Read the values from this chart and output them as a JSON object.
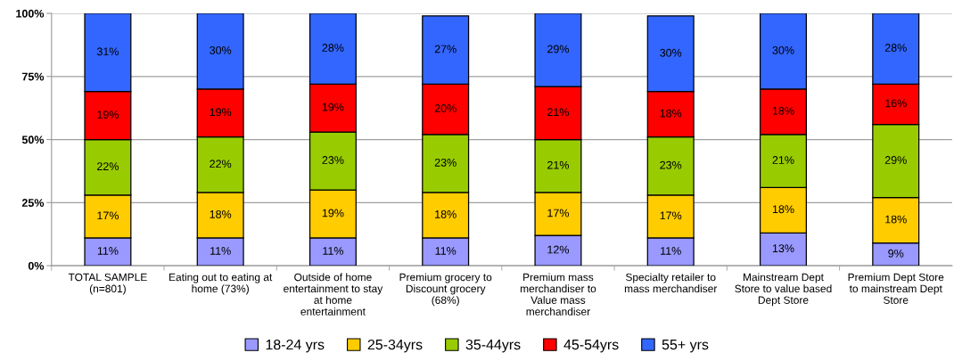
{
  "chart_data": {
    "type": "bar",
    "stacked": true,
    "categories": [
      "TOTAL SAMPLE (n=801)",
      "Eating out to eating at home (73%)",
      "Outside of home entertainment to stay at home entertainment",
      "Premium grocery to Discount grocery (68%)",
      "Premium mass merchandiser to Value mass merchandiser",
      "Specialty retailer to mass merchandiser",
      "Mainstream Dept Store to value based Dept Store",
      "Premium Dept Store to mainstream Dept Store"
    ],
    "series": [
      {
        "name": "18-24 yrs",
        "color": "#9999ff",
        "values": [
          11,
          11,
          11,
          11,
          12,
          11,
          13,
          9
        ],
        "value_labels": [
          "11%",
          "11%",
          "11%",
          "11%",
          "12%",
          "11%",
          "13%",
          "9%"
        ]
      },
      {
        "name": "25-34yrs",
        "color": "#ffcc00",
        "values": [
          17,
          18,
          19,
          18,
          17,
          17,
          18,
          18
        ],
        "value_labels": [
          "17%",
          "18%",
          "19%",
          "18%",
          "17%",
          "17%",
          "18%",
          "18%"
        ]
      },
      {
        "name": "35-44yrs",
        "color": "#99cc00",
        "values": [
          22,
          22,
          23,
          23,
          21,
          23,
          21,
          29
        ],
        "value_labels": [
          "22%",
          "22%",
          "23%",
          "23%",
          "21%",
          "23%",
          "21%",
          "29%"
        ]
      },
      {
        "name": "45-54yrs",
        "color": "#ff0000",
        "values": [
          19,
          19,
          19,
          20,
          21,
          18,
          18,
          16
        ],
        "value_labels": [
          "19%",
          "19%",
          "19%",
          "20%",
          "21%",
          "18%",
          "18%",
          "16%"
        ]
      },
      {
        "name": "55+ yrs",
        "color": "#3366ff",
        "values": [
          31,
          30,
          28,
          27,
          29,
          30,
          30,
          28
        ],
        "value_labels": [
          "31%",
          "30%",
          "28%",
          "27%",
          "29%",
          "30%",
          "30%",
          "28%"
        ]
      }
    ],
    "ylim": [
      0,
      100
    ],
    "yticks": [
      {
        "value": 0,
        "label": "0%"
      },
      {
        "value": 25,
        "label": "25%"
      },
      {
        "value": 50,
        "label": "50%"
      },
      {
        "value": 75,
        "label": "75%"
      },
      {
        "value": 100,
        "label": "100%"
      }
    ],
    "grid": "y",
    "legend": "bottom"
  }
}
